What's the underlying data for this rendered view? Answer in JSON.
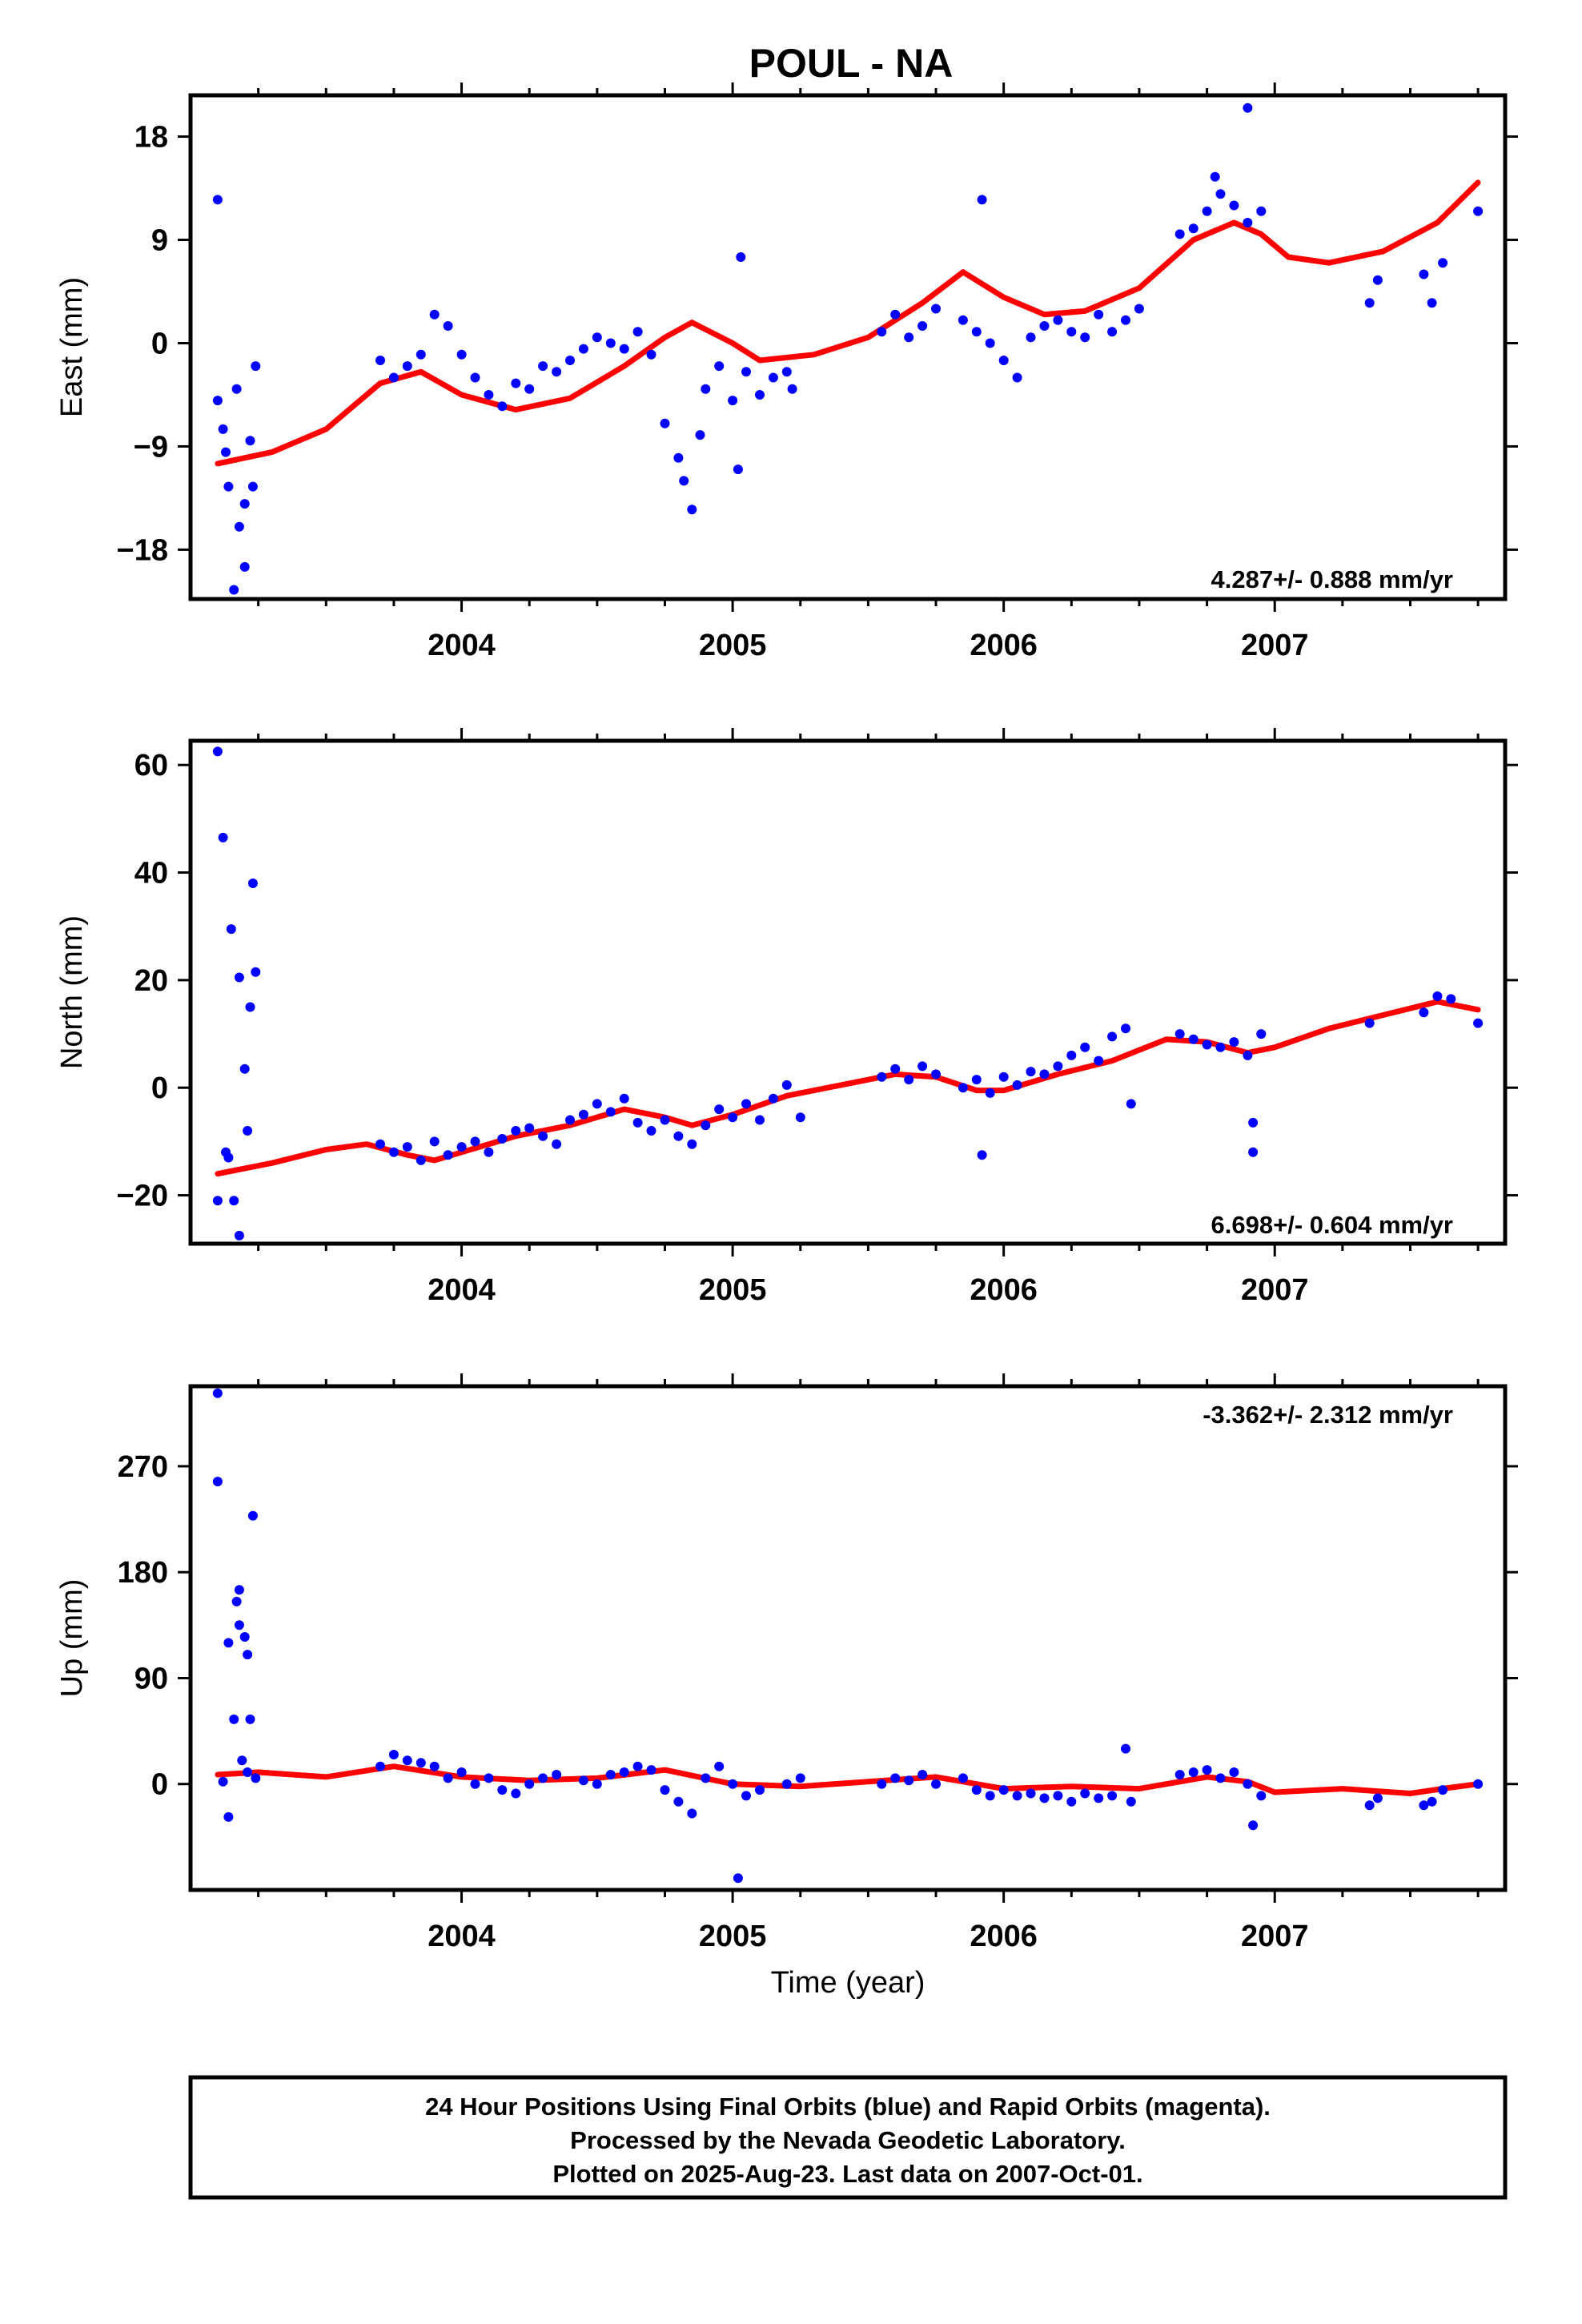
{
  "title": "POUL - NA",
  "footer": {
    "line1": "24 Hour Positions Using Final Orbits (blue) and Rapid Orbits (magenta).",
    "line2": "Processed by the Nevada Geodetic Laboratory.",
    "line3": "Plotted on 2025-Aug-23. Last data on 2007-Oct-01."
  },
  "colors": {
    "points": "#0000ff",
    "fit": "#ff0000",
    "axes": "#000000"
  },
  "chart_data": [
    {
      "type": "scatter",
      "ylabel": "East (mm)",
      "xlabel": "",
      "rate": "4.287+/- 0.888 mm/yr",
      "xlim": [
        2003.0,
        2007.85
      ],
      "ylim": [
        -22.3,
        21.6
      ],
      "yticks": [
        -18,
        -9,
        0,
        9,
        18
      ],
      "ytick_labels": [
        "−18",
        "−9",
        "0",
        "9",
        "18"
      ],
      "xticks": [
        2004,
        2005,
        2006,
        2007
      ],
      "grid": false,
      "fit": {
        "x": [
          2003.1,
          2003.3,
          2003.5,
          2003.7,
          2003.85,
          2004.0,
          2004.2,
          2004.4,
          2004.6,
          2004.75,
          2004.85,
          2005.0,
          2005.1,
          2005.3,
          2005.5,
          2005.7,
          2005.85,
          2006.0,
          2006.15,
          2006.3,
          2006.5,
          2006.7,
          2006.85,
          2006.95,
          2007.05,
          2007.2,
          2007.4,
          2007.6,
          2007.75
        ],
        "y": [
          -10.5,
          -9.5,
          -7.5,
          -3.5,
          -2.5,
          -4.5,
          -5.8,
          -4.8,
          -2.0,
          0.5,
          1.8,
          0.0,
          -1.5,
          -1.0,
          0.5,
          3.5,
          6.2,
          4.0,
          2.5,
          2.8,
          4.8,
          9.0,
          10.5,
          9.5,
          7.5,
          7.0,
          8.0,
          10.5,
          14.0
        ]
      },
      "points": {
        "x": [
          2003.1,
          2003.12,
          2003.14,
          2003.16,
          2003.18,
          2003.2,
          2003.22,
          2003.24,
          2003.1,
          2003.13,
          2003.17,
          2003.2,
          2003.23,
          2003.7,
          2003.75,
          2003.8,
          2003.85,
          2003.9,
          2003.95,
          2004.0,
          2004.05,
          2004.1,
          2004.15,
          2004.2,
          2004.25,
          2004.3,
          2004.35,
          2004.4,
          2004.45,
          2004.5,
          2004.55,
          2004.6,
          2004.65,
          2004.7,
          2004.75,
          2004.8,
          2004.82,
          2004.85,
          2004.88,
          2004.9,
          2004.95,
          2005.0,
          2005.02,
          2005.05,
          2005.1,
          2005.15,
          2005.2,
          2005.22,
          2005.55,
          2005.6,
          2005.65,
          2005.7,
          2005.75,
          2005.85,
          2005.9,
          2005.95,
          2006.0,
          2006.05,
          2006.1,
          2006.15,
          2006.2,
          2006.25,
          2006.3,
          2006.35,
          2006.4,
          2006.45,
          2006.5,
          2006.65,
          2006.7,
          2006.75,
          2006.8,
          2006.85,
          2006.9,
          2006.95,
          2007.35,
          2007.38,
          2007.55,
          2007.58,
          2007.62,
          2007.75,
          2006.78,
          2006.9,
          2005.92,
          2005.03
        ],
        "y": [
          12.5,
          -7.5,
          -12.5,
          -21.5,
          -16.0,
          -14.0,
          -8.5,
          -2.0,
          -5.0,
          -9.5,
          -4.0,
          -19.5,
          -12.5,
          -1.5,
          -3.0,
          -2.0,
          -1.0,
          2.5,
          1.5,
          -1.0,
          -3.0,
          -4.5,
          -5.5,
          -3.5,
          -4.0,
          -2.0,
          -2.5,
          -1.5,
          -0.5,
          0.5,
          0.0,
          -0.5,
          1.0,
          -1.0,
          -7.0,
          -10.0,
          -12.0,
          -14.5,
          -8.0,
          -4.0,
          -2.0,
          -5.0,
          -11.0,
          -2.5,
          -4.5,
          -3.0,
          -2.5,
          -4.0,
          1.0,
          2.5,
          0.5,
          1.5,
          3.0,
          2.0,
          1.0,
          0.0,
          -1.5,
          -3.0,
          0.5,
          1.5,
          2.0,
          1.0,
          0.5,
          2.5,
          1.0,
          2.0,
          3.0,
          9.5,
          10.0,
          11.5,
          13.0,
          12.0,
          10.5,
          11.5,
          3.5,
          5.5,
          6.0,
          3.5,
          7.0,
          11.5,
          14.5,
          20.5,
          12.5,
          7.5
        ]
      }
    },
    {
      "type": "scatter",
      "ylabel": "North (mm)",
      "xlabel": "",
      "rate": "6.698+/- 0.604 mm/yr",
      "xlim": [
        2003.0,
        2007.85
      ],
      "ylim": [
        -29.0,
        64.5
      ],
      "yticks": [
        -20,
        0,
        20,
        40,
        60
      ],
      "ytick_labels": [
        "−20",
        "0",
        "20",
        "40",
        "60"
      ],
      "xticks": [
        2004,
        2005,
        2006,
        2007
      ],
      "grid": false,
      "fit": {
        "x": [
          2003.1,
          2003.3,
          2003.5,
          2003.65,
          2003.8,
          2003.9,
          2004.0,
          2004.2,
          2004.4,
          2004.6,
          2004.75,
          2004.85,
          2005.0,
          2005.2,
          2005.4,
          2005.6,
          2005.75,
          2005.9,
          2006.0,
          2006.2,
          2006.4,
          2006.6,
          2006.75,
          2006.9,
          2007.0,
          2007.2,
          2007.4,
          2007.6,
          2007.75
        ],
        "y": [
          -16.0,
          -14.0,
          -11.5,
          -10.5,
          -12.5,
          -13.5,
          -12.0,
          -9.0,
          -7.0,
          -4.0,
          -5.5,
          -7.0,
          -5.0,
          -1.5,
          0.5,
          2.5,
          2.0,
          -0.5,
          -0.5,
          2.5,
          5.0,
          9.0,
          8.5,
          6.5,
          7.5,
          11.0,
          13.5,
          16.0,
          14.5
        ]
      },
      "points": {
        "x": [
          2003.1,
          2003.12,
          2003.14,
          2003.16,
          2003.18,
          2003.2,
          2003.22,
          2003.24,
          2003.1,
          2003.13,
          2003.15,
          2003.18,
          2003.21,
          2003.23,
          2003.7,
          2003.75,
          2003.8,
          2003.85,
          2003.9,
          2003.95,
          2004.0,
          2004.05,
          2004.1,
          2004.15,
          2004.2,
          2004.25,
          2004.3,
          2004.35,
          2004.4,
          2004.45,
          2004.5,
          2004.55,
          2004.6,
          2004.65,
          2004.7,
          2004.75,
          2004.8,
          2004.85,
          2004.9,
          2004.95,
          2005.0,
          2005.05,
          2005.1,
          2005.15,
          2005.2,
          2005.25,
          2005.55,
          2005.6,
          2005.65,
          2005.7,
          2005.75,
          2005.85,
          2005.9,
          2005.95,
          2006.0,
          2006.05,
          2006.1,
          2006.15,
          2006.2,
          2006.25,
          2006.3,
          2006.35,
          2006.4,
          2006.45,
          2006.47,
          2006.65,
          2006.7,
          2006.75,
          2006.8,
          2006.85,
          2006.9,
          2006.92,
          2006.95,
          2007.35,
          2007.55,
          2007.6,
          2007.65,
          2007.75,
          2005.92,
          2006.92
        ],
        "y": [
          62.5,
          46.5,
          -13.0,
          -21.0,
          -27.5,
          3.5,
          15.0,
          21.5,
          -21.0,
          -12.0,
          29.5,
          20.5,
          -8.0,
          38.0,
          -10.5,
          -12.0,
          -11.0,
          -13.5,
          -10.0,
          -12.5,
          -11.0,
          -10.0,
          -12.0,
          -9.5,
          -8.0,
          -7.5,
          -9.0,
          -10.5,
          -6.0,
          -5.0,
          -3.0,
          -4.5,
          -2.0,
          -6.5,
          -8.0,
          -6.0,
          -9.0,
          -10.5,
          -7.0,
          -4.0,
          -5.5,
          -3.0,
          -6.0,
          -2.0,
          0.5,
          -5.5,
          2.0,
          3.5,
          1.5,
          4.0,
          2.5,
          0.0,
          1.5,
          -1.0,
          2.0,
          0.5,
          3.0,
          2.5,
          4.0,
          6.0,
          7.5,
          5.0,
          9.5,
          11.0,
          -3.0,
          10.0,
          9.0,
          8.0,
          7.5,
          8.5,
          6.0,
          -12.0,
          10.0,
          12.0,
          14.0,
          17.0,
          16.5,
          12.0,
          -12.5,
          -6.5
        ]
      }
    },
    {
      "type": "scatter",
      "ylabel": "Up (mm)",
      "xlabel": "Time (year)",
      "rate": "-3.362+/- 2.312 mm/yr",
      "xlim": [
        2003.0,
        2007.85
      ],
      "ylim": [
        -90.0,
        338.0
      ],
      "yticks": [
        0,
        90,
        180,
        270
      ],
      "ytick_labels": [
        "0",
        "90",
        "180",
        "270"
      ],
      "xticks": [
        2004,
        2005,
        2006,
        2007
      ],
      "grid": false,
      "fit": {
        "x": [
          2003.1,
          2003.25,
          2003.5,
          2003.75,
          2004.0,
          2004.25,
          2004.5,
          2004.75,
          2005.0,
          2005.25,
          2005.5,
          2005.75,
          2006.0,
          2006.25,
          2006.5,
          2006.75,
          2006.9,
          2007.0,
          2007.25,
          2007.5,
          2007.65,
          2007.75
        ],
        "y": [
          8.0,
          10.0,
          6.0,
          15.0,
          6.0,
          3.0,
          5.0,
          12.0,
          0.0,
          -2.0,
          2.0,
          6.0,
          -4.0,
          -2.0,
          -4.0,
          6.0,
          2.0,
          -7.0,
          -4.0,
          -8.0,
          -3.0,
          0.0
        ]
      },
      "points": {
        "x": [
          2003.1,
          2003.1,
          2003.12,
          2003.14,
          2003.16,
          2003.17,
          2003.18,
          2003.19,
          2003.2,
          2003.21,
          2003.22,
          2003.23,
          2003.24,
          2003.14,
          2003.18,
          2003.21,
          2003.7,
          2003.75,
          2003.8,
          2003.85,
          2003.9,
          2003.95,
          2004.0,
          2004.05,
          2004.1,
          2004.15,
          2004.2,
          2004.25,
          2004.3,
          2004.35,
          2004.45,
          2004.5,
          2004.55,
          2004.6,
          2004.65,
          2004.7,
          2004.75,
          2004.8,
          2004.85,
          2004.9,
          2004.95,
          2005.0,
          2005.02,
          2005.05,
          2005.1,
          2005.2,
          2005.25,
          2005.55,
          2005.6,
          2005.65,
          2005.7,
          2005.75,
          2005.85,
          2005.9,
          2005.95,
          2006.0,
          2006.05,
          2006.1,
          2006.15,
          2006.2,
          2006.25,
          2006.3,
          2006.35,
          2006.4,
          2006.45,
          2006.47,
          2006.65,
          2006.7,
          2006.75,
          2006.8,
          2006.85,
          2006.9,
          2006.92,
          2006.95,
          2007.35,
          2007.38,
          2007.55,
          2007.58,
          2007.62,
          2007.75
        ],
        "y": [
          332.0,
          257.0,
          2.0,
          -28.0,
          55.0,
          155.0,
          165.0,
          20.0,
          125.0,
          110.0,
          55.0,
          228.0,
          5.0,
          120.0,
          135.0,
          10.0,
          15.0,
          25.0,
          20.0,
          18.0,
          15.0,
          5.0,
          10.0,
          0.0,
          5.0,
          -5.0,
          -8.0,
          0.0,
          5.0,
          8.0,
          3.0,
          0.0,
          8.0,
          10.0,
          15.0,
          12.0,
          -5.0,
          -15.0,
          -25.0,
          5.0,
          15.0,
          0.0,
          -80.0,
          -10.0,
          -5.0,
          0.0,
          5.0,
          0.0,
          5.0,
          3.0,
          8.0,
          0.0,
          5.0,
          -5.0,
          -10.0,
          -5.0,
          -10.0,
          -8.0,
          -12.0,
          -10.0,
          -15.0,
          -8.0,
          -12.0,
          -10.0,
          30.0,
          -15.0,
          8.0,
          10.0,
          12.0,
          5.0,
          10.0,
          0.0,
          -35.0,
          -10.0,
          -18.0,
          -12.0,
          -18.0,
          -15.0,
          -5.0,
          0.0
        ]
      }
    }
  ]
}
